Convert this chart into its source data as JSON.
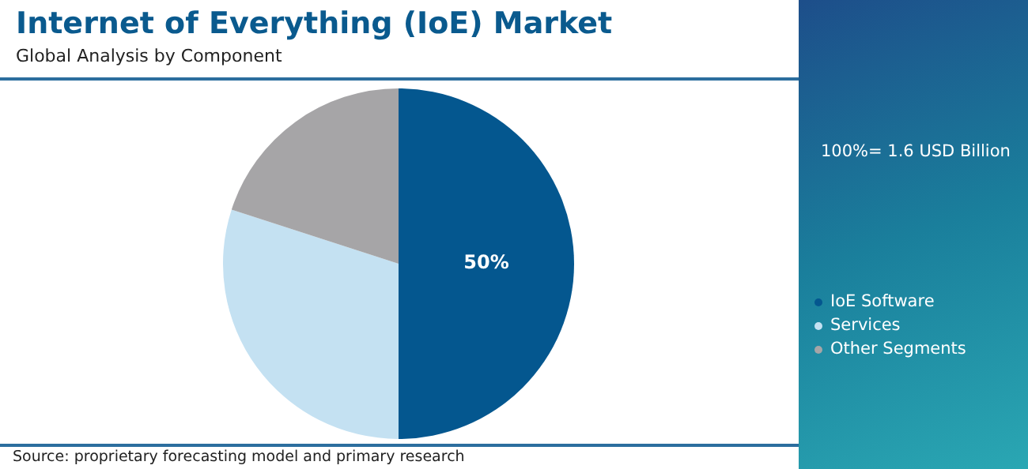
{
  "chart_data": {
    "type": "pie",
    "title": "Internet of Everything (IoE) Market",
    "subtitle": "Global Analysis by Component",
    "categories": [
      "IoE Software",
      "Services",
      "Other Segments"
    ],
    "values": [
      50,
      30,
      20
    ],
    "colors": [
      "#04578f",
      "#c4e1f2",
      "#a6a5a7"
    ],
    "value_labels": [
      "50%",
      null,
      null
    ],
    "legend": "right",
    "annotations": [
      "100%= 1.6 USD Billion",
      "Source: proprietary forecasting model and primary research"
    ]
  }
}
